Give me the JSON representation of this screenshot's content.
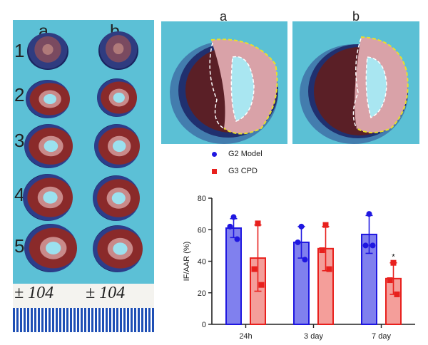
{
  "left_panel": {
    "col_labels": [
      "a",
      "b"
    ],
    "row_labels": [
      "1",
      "2",
      "3",
      "4",
      "5"
    ],
    "label_strip": [
      "± 104",
      "± 104"
    ]
  },
  "photo_panel": {
    "col_labels": [
      "a",
      "b"
    ]
  },
  "colors": {
    "g2": "#1f17e0",
    "g2_fill": "#8080ee",
    "g3": "#e8201d",
    "g3_fill": "#f49e9a",
    "background_cyan": "#5cc0d6"
  },
  "chart_data": {
    "type": "bar",
    "title": "",
    "xlabel": "",
    "ylabel": "IF/AAR (%)",
    "ylim": [
      0,
      80
    ],
    "yticks": [
      0,
      20,
      40,
      60,
      80
    ],
    "categories": [
      "24h",
      "3 day",
      "7 day"
    ],
    "legend_position": "top-left",
    "series": [
      {
        "name": "G2 Model",
        "marker": "circle",
        "values": [
          61,
          52,
          57
        ],
        "errors": [
          6,
          10,
          12
        ],
        "points": [
          [
            68,
            62,
            54
          ],
          [
            62,
            52,
            41
          ],
          [
            70,
            50,
            50
          ]
        ]
      },
      {
        "name": "G3 CPD",
        "marker": "square",
        "values": [
          42,
          48,
          29
        ],
        "errors": [
          21,
          14,
          10
        ],
        "points": [
          [
            64,
            35,
            25
          ],
          [
            63,
            47,
            35
          ],
          [
            39,
            28,
            19
          ]
        ]
      }
    ],
    "annotations": [
      {
        "category": "7 day",
        "series": "G3 CPD",
        "text": "*"
      }
    ]
  }
}
